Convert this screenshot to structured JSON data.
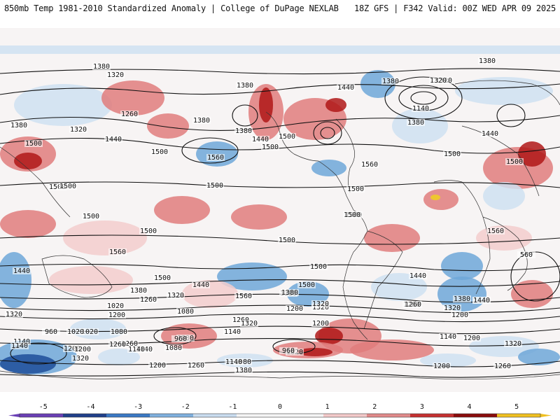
{
  "header": {
    "title": "850mb Temp 1981-2010 Standardized Anomaly | College of DuPage NEXLAB",
    "run_info": "18Z GFS | F342 Valid: 00Z WED APR 09 2025"
  },
  "colors": {
    "strong_neg": "#1f4e9a",
    "neg": "#6fa7d8",
    "weak_neg": "#cfe0f1",
    "weak_pos": "#f3cccc",
    "pos": "#e07c7c",
    "strong_pos": "#b01818",
    "extreme_pos": "#f0d020",
    "contour": "#111111"
  },
  "legend": {
    "ticks": [
      "-5",
      "-4",
      "-3",
      "-2",
      "-1",
      "0",
      "1",
      "2",
      "3",
      "4",
      "5"
    ],
    "colors": [
      "#6a3fb5",
      "#1f3f8a",
      "#3a78c4",
      "#7fb0de",
      "#c9dcef",
      "#f4f4f4",
      "#f4f4f4",
      "#f2c9c9",
      "#e08a8a",
      "#c53030",
      "#8a0c0c",
      "#f0c020"
    ]
  },
  "contours": {
    "labels": [
      "1380",
      "1320",
      "1380",
      "1260",
      "1380",
      "1320",
      "1500",
      "1440",
      "1500",
      "1560",
      "1500",
      "1380",
      "1440",
      "1500",
      "1500",
      "1440",
      "1380",
      "1320",
      "1500",
      "1500",
      "1500",
      "1560",
      "1500",
      "1440",
      "1380",
      "1380",
      "1320",
      "1140",
      "1380",
      "1440",
      "1500",
      "1500",
      "1500",
      "1500",
      "1500",
      "1560",
      "1500",
      "1560",
      "1500",
      "1500",
      "1440",
      "1380",
      "1320",
      "1560",
      "1380",
      "1320",
      "1260",
      "1200",
      "1440",
      "1380",
      "1500",
      "1440",
      "1320",
      "1260",
      "1200",
      "1020",
      "1080",
      "1260",
      "1200",
      "1140",
      "1080",
      "960",
      "1020",
      "960",
      "1140",
      "1200",
      "1260",
      "1140",
      "1080",
      "1140",
      "1200",
      "1320",
      "1320",
      "1140",
      "1200",
      "1260",
      "1320",
      "1380",
      "1320",
      "1200",
      "1260",
      "1080",
      "1020",
      "1140",
      "960",
      "1020",
      "1080",
      "560",
      "1320",
      "1200",
      "1140",
      "1260",
      "1200",
      "1440",
      "1260",
      "1380"
    ]
  }
}
